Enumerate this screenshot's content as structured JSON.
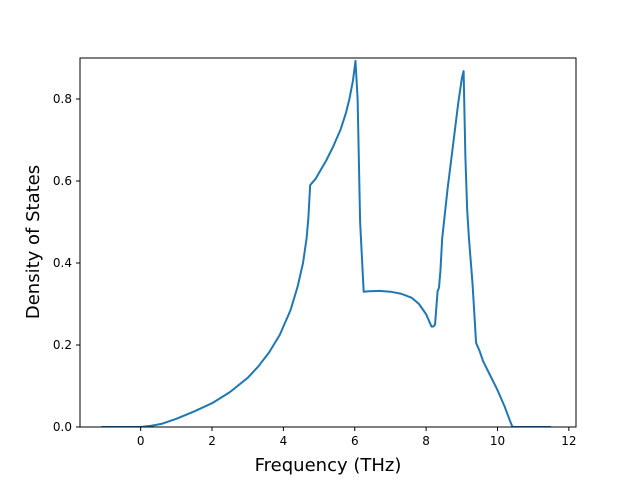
{
  "chart_data": {
    "type": "line",
    "xlabel": "Frequency (THz)",
    "ylabel": "Density of States",
    "xlim": [
      -1.7,
      12.2
    ],
    "ylim": [
      0,
      0.9
    ],
    "x_ticks": [
      0,
      2,
      4,
      6,
      8,
      10,
      12
    ],
    "y_ticks": [
      0.0,
      0.2,
      0.4,
      0.6,
      0.8
    ],
    "x_tick_labels": [
      "0",
      "2",
      "4",
      "6",
      "8",
      "10",
      "12"
    ],
    "y_tick_labels": [
      "0.0",
      "0.2",
      "0.4",
      "0.6",
      "0.8"
    ],
    "grid": false,
    "line_color": "#1f77b4",
    "series": [
      {
        "x": [
          -1.1,
          -0.5,
          0.0,
          0.3,
          0.6,
          1.0,
          1.5,
          2.0,
          2.5,
          3.0,
          3.3,
          3.6,
          3.9,
          4.2,
          4.4,
          4.55,
          4.65,
          4.7,
          4.75,
          4.8,
          4.9,
          5.0,
          5.2,
          5.4,
          5.6,
          5.75,
          5.85,
          5.95,
          6.02,
          6.08,
          6.15,
          6.25,
          6.4,
          6.7,
          7.0,
          7.3,
          7.6,
          7.8,
          8.0,
          8.1,
          8.15,
          8.2,
          8.25,
          8.32,
          8.36,
          8.4,
          8.45,
          8.5,
          8.6,
          8.7,
          8.8,
          8.9,
          9.0,
          9.05,
          9.1,
          9.15,
          9.2,
          9.3,
          9.4,
          9.5,
          9.6,
          9.8,
          10.0,
          10.2,
          10.35,
          10.42,
          10.5,
          11.0,
          11.5
        ],
        "y": [
          0.0,
          0.0,
          0.0,
          0.003,
          0.008,
          0.02,
          0.038,
          0.058,
          0.085,
          0.12,
          0.148,
          0.182,
          0.225,
          0.285,
          0.343,
          0.4,
          0.46,
          0.51,
          0.59,
          0.595,
          0.605,
          0.62,
          0.65,
          0.685,
          0.725,
          0.765,
          0.8,
          0.845,
          0.893,
          0.8,
          0.5,
          0.33,
          0.331,
          0.332,
          0.33,
          0.325,
          0.315,
          0.3,
          0.275,
          0.255,
          0.245,
          0.245,
          0.25,
          0.33,
          0.34,
          0.38,
          0.46,
          0.5,
          0.58,
          0.65,
          0.72,
          0.79,
          0.85,
          0.868,
          0.66,
          0.53,
          0.46,
          0.35,
          0.205,
          0.185,
          0.16,
          0.125,
          0.09,
          0.05,
          0.015,
          0.0,
          0.0,
          0.0,
          0.0
        ]
      }
    ]
  }
}
